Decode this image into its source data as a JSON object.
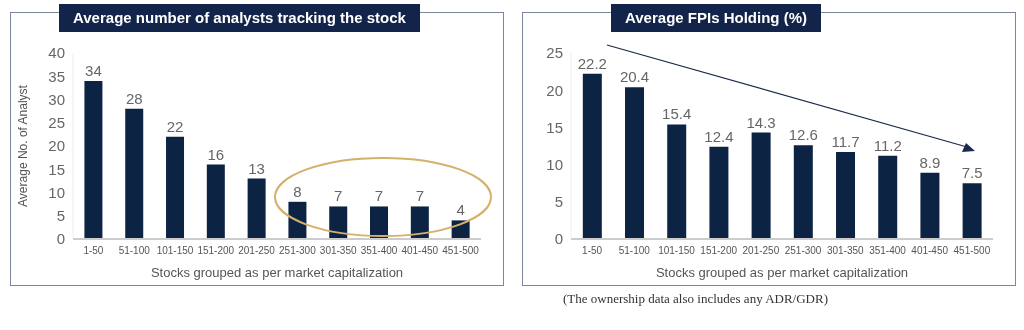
{
  "chart_data": [
    {
      "type": "bar",
      "title": "Average number of analysts tracking the stock",
      "xlabel": "Stocks grouped as per market capitalization",
      "ylabel": "Average No. of Analyst",
      "categories": [
        "1-50",
        "51-100",
        "101-150",
        "151-200",
        "201-250",
        "251-300",
        "301-350",
        "351-400",
        "401-450",
        "451-500"
      ],
      "values": [
        34,
        28,
        22,
        16,
        13,
        8,
        7,
        7,
        7,
        4
      ],
      "color": "#0d2343",
      "ylim": [
        0,
        40
      ],
      "yticks": [
        0,
        5,
        10,
        15,
        20,
        25,
        30,
        35,
        40
      ],
      "grid": false,
      "legend": false,
      "data_labels": true
    },
    {
      "type": "bar",
      "title": "Average FPIs Holding (%)",
      "xlabel": "Stocks grouped as per market capitalization",
      "categories": [
        "1-50",
        "51-100",
        "101-150",
        "151-200",
        "201-250",
        "251-300",
        "301-350",
        "351-400",
        "401-450",
        "451-500"
      ],
      "values": [
        22.2,
        20.4,
        15.4,
        12.4,
        14.3,
        12.6,
        11.7,
        11.2,
        8.9,
        7.5
      ],
      "color": "#0d2343",
      "ylim": [
        0,
        25
      ],
      "yticks": [
        0,
        5,
        10,
        15,
        20,
        25
      ],
      "grid": false,
      "legend": false,
      "data_labels": true,
      "annotations": [
        "(The ownership data also includes any ADR/GDR)"
      ]
    }
  ]
}
